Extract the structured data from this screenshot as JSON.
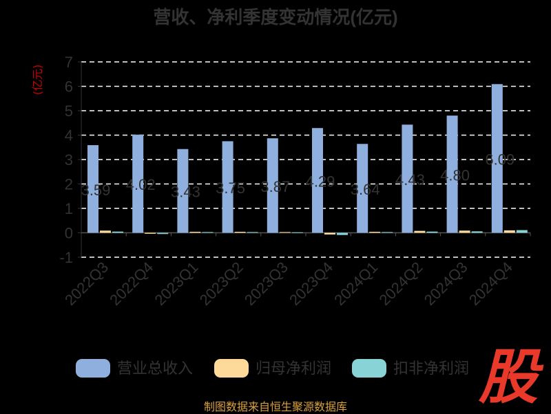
{
  "chart_data": {
    "type": "bar",
    "title": "营收、净利季度变动情况(亿元)",
    "ylabel": "(亿元)",
    "xlabel": "",
    "ylim": [
      -1,
      7
    ],
    "yticks": [
      "7",
      "6",
      "5",
      "4",
      "3",
      "2",
      "1",
      "0",
      "-1"
    ],
    "grid": true,
    "legend_position": "bottom",
    "categories": [
      "2022Q3",
      "2022Q4",
      "2023Q1",
      "2023Q2",
      "2023Q3",
      "2023Q4",
      "2024Q1",
      "2024Q2",
      "2024Q3",
      "2024Q4"
    ],
    "series": [
      {
        "name": "营业总收入",
        "color": "#8fb0de",
        "values": [
          3.59,
          4.02,
          3.43,
          3.75,
          3.87,
          4.29,
          3.64,
          4.43,
          4.8,
          6.09
        ]
      },
      {
        "name": "归母净利润",
        "color": "#fdd99a",
        "values": [
          0.09,
          -0.04,
          0.04,
          0.04,
          0.03,
          -0.07,
          0.04,
          0.08,
          0.09,
          0.1
        ]
      },
      {
        "name": "扣非净利润",
        "color": "#87d3d6",
        "values": [
          0.05,
          -0.05,
          0.03,
          0.03,
          0.02,
          -0.09,
          0.03,
          0.05,
          0.06,
          0.11
        ]
      }
    ],
    "data_labels": [
      "3.59",
      "4.02",
      "3.43",
      "3.75",
      "3.87",
      "4.29",
      "3.64",
      "4.43",
      "4.80",
      "6.09"
    ]
  },
  "logo": {
    "text": "股",
    "color": "#e8392a"
  },
  "footer": {
    "credit": "制图数据来自恒生聚源数据库"
  }
}
